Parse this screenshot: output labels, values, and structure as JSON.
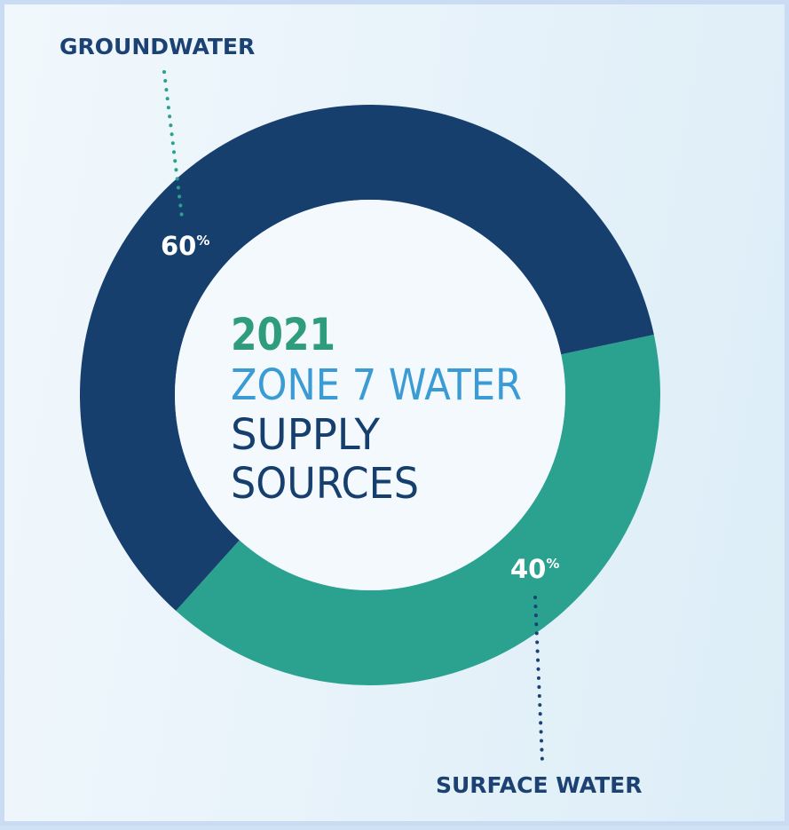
{
  "chart_data": {
    "type": "pie",
    "donut": true,
    "slices": [
      {
        "label": "GROUNDWATER",
        "value": 60,
        "value_text": "60",
        "unit": "%",
        "color": "#163f6e"
      },
      {
        "label": "SURFACE WATER",
        "value": 40,
        "value_text": "40",
        "unit": "%",
        "color": "#2aa28f"
      }
    ],
    "center_title": {
      "year": "2021",
      "line2": "ZONE 7 WATER",
      "line3": "SUPPLY",
      "line4": "SOURCES"
    }
  },
  "colors": {
    "year": "#2f9c7e",
    "line2": "#3a9bd5",
    "line3": "#163f6e",
    "callout_text": "#1c4173",
    "groundwater_leader": "#2aa28f",
    "surface_leader": "#1c4173"
  }
}
